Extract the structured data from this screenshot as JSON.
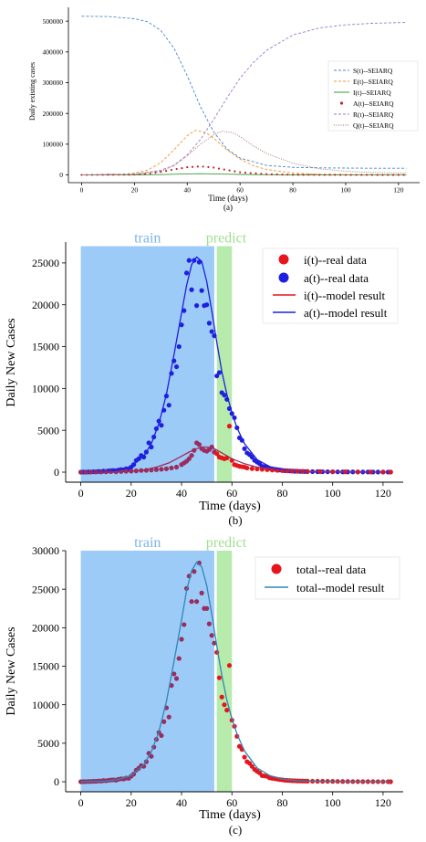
{
  "colors": {
    "train_band": "#9ccbf7",
    "predict_band": "#b6ebab",
    "red": "#e8141c",
    "blue": "#1f1fe0",
    "purple": "#9b2c5e",
    "total_line": "#2f86b8"
  },
  "chart_data": [
    {
      "type": "line",
      "caption": "(a)",
      "xlabel": "Time (days)",
      "ylabel": "Daily existing cases",
      "xlim": [
        -5,
        128
      ],
      "ylim": [
        -25000,
        545000
      ],
      "xticks": [
        "0",
        "20",
        "40",
        "60",
        "80",
        "100",
        "120"
      ],
      "yticks": [
        "0",
        "100000",
        "200000",
        "300000",
        "400000",
        "500000"
      ],
      "legend_position": "right",
      "series": [
        {
          "name": "S(t)--SEIARQ",
          "color": "#4a86c8",
          "style": "dashed",
          "x": [
            0,
            10,
            20,
            25,
            30,
            35,
            40,
            45,
            50,
            55,
            60,
            70,
            80,
            90,
            100,
            110,
            123
          ],
          "y": [
            516000,
            515000,
            508000,
            498000,
            470000,
            412000,
            322000,
            222000,
            140000,
            85000,
            55000,
            31000,
            25000,
            23000,
            22500,
            22000,
            22000
          ]
        },
        {
          "name": "E(t)--SEIARQ",
          "color": "#f0962e",
          "style": "dashed",
          "x": [
            0,
            15,
            20,
            25,
            30,
            35,
            40,
            43,
            47,
            50,
            55,
            60,
            65,
            70,
            80,
            90,
            100,
            123
          ],
          "y": [
            200,
            2000,
            6000,
            16000,
            40000,
            82000,
            128000,
            145000,
            138000,
            120000,
            82000,
            52000,
            30000,
            18000,
            6000,
            2000,
            800,
            200
          ]
        },
        {
          "name": "I(t)--SEIARQ",
          "color": "#3a9a3a",
          "style": "solid",
          "x": [
            0,
            20,
            30,
            35,
            40,
            45,
            50,
            55,
            60,
            70,
            80,
            100,
            123
          ],
          "y": [
            0,
            200,
            1200,
            2400,
            3600,
            4100,
            3500,
            2600,
            1700,
            700,
            250,
            50,
            0
          ]
        },
        {
          "name": "A(t)--SEIARQ",
          "color": "#c0252d",
          "style": "dots",
          "x": [
            0,
            20,
            25,
            30,
            35,
            40,
            45,
            50,
            55,
            60,
            70,
            80,
            100,
            123
          ],
          "y": [
            0,
            1200,
            4000,
            10000,
            18000,
            25000,
            28000,
            24000,
            16000,
            9000,
            2500,
            700,
            100,
            0
          ]
        },
        {
          "name": "R(t)--SEIARQ",
          "color": "#9a79c6",
          "style": "dashed",
          "x": [
            0,
            20,
            30,
            35,
            40,
            45,
            50,
            55,
            60,
            65,
            70,
            80,
            90,
            100,
            110,
            123
          ],
          "y": [
            0,
            3000,
            15000,
            32000,
            65000,
            115000,
            180000,
            250000,
            315000,
            365000,
            405000,
            455000,
            478000,
            488000,
            493000,
            496000
          ]
        },
        {
          "name": "Q(t)--SEIARQ",
          "color": "#a07060",
          "style": "dotted",
          "x": [
            0,
            20,
            30,
            35,
            40,
            45,
            50,
            53,
            57,
            60,
            65,
            70,
            80,
            90,
            100,
            110,
            123
          ],
          "y": [
            0,
            2000,
            12000,
            30000,
            62000,
            100000,
            130000,
            142000,
            138000,
            125000,
            95000,
            70000,
            38000,
            20000,
            12000,
            8000,
            6000
          ]
        }
      ]
    },
    {
      "type": "scatter",
      "caption": "(b)",
      "xlabel": "Time (days)",
      "ylabel": "Daily New Cases",
      "xlim": [
        -6,
        128
      ],
      "ylim": [
        -1200,
        27500
      ],
      "xticks": [
        "0",
        "20",
        "40",
        "60",
        "80",
        "100",
        "120"
      ],
      "yticks": [
        "0",
        "5000",
        "10000",
        "15000",
        "20000",
        "25000"
      ],
      "bands": [
        {
          "label": "train",
          "from": 0,
          "to": 53,
          "ymax": 27000
        },
        {
          "label": "predict",
          "from": 54,
          "to": 60,
          "ymax": 27000
        }
      ],
      "legend_position": "top-right",
      "legend": [
        "i(t)--real data",
        "a(t)--real data",
        "i(t)--model result",
        "a(t)--model result"
      ],
      "a_real": {
        "x": [
          0,
          1,
          2,
          3,
          4,
          5,
          6,
          7,
          8,
          9,
          10,
          11,
          12,
          13,
          14,
          15,
          16,
          17,
          18,
          19,
          20,
          21,
          22,
          23,
          24,
          25,
          26,
          27,
          28,
          29,
          30,
          31,
          32,
          33,
          34,
          35,
          36,
          37,
          38,
          39,
          40,
          41,
          42,
          43,
          44,
          45,
          46,
          47,
          48,
          49,
          50,
          51,
          52,
          53,
          54,
          55,
          56,
          57,
          58,
          59,
          60,
          61,
          62,
          63,
          64,
          65,
          66,
          67,
          68,
          69,
          70,
          71,
          72,
          73,
          74,
          75,
          76,
          77,
          78,
          79,
          80,
          81,
          82,
          83,
          84,
          85,
          86,
          87,
          88,
          89,
          90,
          92,
          94,
          96,
          98,
          100,
          102,
          104,
          106,
          108,
          110,
          112,
          114,
          116,
          118,
          120,
          122,
          123
        ],
        "y": [
          0,
          10,
          0,
          30,
          20,
          50,
          40,
          80,
          70,
          120,
          100,
          150,
          180,
          200,
          160,
          250,
          300,
          280,
          400,
          350,
          600,
          900,
          1400,
          1600,
          2000,
          1800,
          2400,
          3500,
          3000,
          4200,
          5200,
          6100,
          5600,
          7400,
          9100,
          8000,
          11800,
          13300,
          12600,
          15000,
          17600,
          19300,
          23800,
          25300,
          21800,
          25300,
          19900,
          25100,
          21700,
          19900,
          20000,
          17800,
          16800,
          16300,
          11500,
          11900,
          9500,
          9200,
          8700,
          7600,
          7000,
          6500,
          5300,
          4100,
          3800,
          2800,
          2300,
          2100,
          1800,
          1400,
          1200,
          1000,
          700,
          650,
          600,
          450,
          400,
          350,
          300,
          260,
          220,
          180,
          160,
          140,
          120,
          110,
          100,
          90,
          80,
          75,
          70,
          60,
          55,
          50,
          45,
          40,
          35,
          30,
          28,
          25,
          22,
          20,
          18,
          15,
          12,
          10,
          8,
          5
        ]
      },
      "i_real": {
        "x": [
          0,
          2,
          4,
          6,
          8,
          10,
          12,
          14,
          16,
          18,
          20,
          22,
          24,
          26,
          28,
          30,
          32,
          34,
          36,
          38,
          40,
          41,
          42,
          43,
          44,
          45,
          46,
          47,
          48,
          49,
          50,
          51,
          52,
          53,
          54,
          55,
          56,
          57,
          58,
          59,
          60,
          61,
          62,
          63,
          64,
          65,
          66,
          68,
          70,
          72,
          74,
          76,
          78,
          80,
          82,
          84,
          86,
          88,
          90,
          95,
          100,
          105,
          110,
          115,
          120,
          123
        ],
        "y": [
          0,
          0,
          10,
          20,
          30,
          40,
          60,
          40,
          80,
          100,
          120,
          150,
          200,
          220,
          250,
          300,
          350,
          400,
          500,
          600,
          900,
          1100,
          1300,
          1600,
          2000,
          2600,
          3500,
          3300,
          2800,
          2600,
          2500,
          2700,
          3000,
          2400,
          2200,
          1800,
          1700,
          1600,
          1700,
          5500,
          1400,
          900,
          800,
          700,
          650,
          600,
          500,
          420,
          380,
          340,
          300,
          260,
          220,
          190,
          160,
          140,
          120,
          100,
          90,
          70,
          50,
          40,
          30,
          20,
          15,
          10
        ]
      },
      "i_model": {
        "x": [
          0,
          10,
          20,
          25,
          30,
          35,
          40,
          43,
          46,
          48,
          50,
          53,
          56,
          60,
          65,
          70,
          80,
          90,
          100,
          110,
          123
        ],
        "y": [
          0,
          10,
          100,
          250,
          600,
          1100,
          1900,
          2400,
          2800,
          3000,
          3000,
          2800,
          2300,
          1600,
          1000,
          600,
          220,
          80,
          30,
          10,
          0
        ]
      },
      "a_model": {
        "x": [
          0,
          10,
          15,
          20,
          25,
          28,
          31,
          34,
          37,
          40,
          42,
          44,
          46,
          48,
          50,
          52,
          54,
          56,
          58,
          60,
          62,
          65,
          70,
          75,
          80,
          85,
          90,
          100,
          110,
          123
        ],
        "y": [
          0,
          80,
          250,
          700,
          1900,
          3400,
          5800,
          9300,
          14000,
          19000,
          22300,
          24800,
          25700,
          25200,
          22800,
          19300,
          15500,
          12000,
          9300,
          7100,
          5300,
          3400,
          1500,
          650,
          280,
          130,
          60,
          15,
          5,
          0
        ]
      }
    },
    {
      "type": "scatter",
      "caption": "(c)",
      "xlabel": "Time (days)",
      "ylabel": "Daily New Cases",
      "xlim": [
        -6,
        128
      ],
      "ylim": [
        -1300,
        30000
      ],
      "xticks": [
        "0",
        "20",
        "40",
        "60",
        "80",
        "100",
        "120"
      ],
      "yticks": [
        "0",
        "5000",
        "10000",
        "15000",
        "20000",
        "25000",
        "30000"
      ],
      "bands": [
        {
          "label": "train",
          "from": 0,
          "to": 53,
          "ymax": 30000
        },
        {
          "label": "predict",
          "from": 54,
          "to": 60,
          "ymax": 30000
        }
      ],
      "legend_position": "top-right",
      "legend": [
        "total--real data",
        "total--model result"
      ],
      "total_real": {
        "x": [
          0,
          1,
          2,
          3,
          4,
          5,
          6,
          7,
          8,
          9,
          10,
          11,
          12,
          13,
          14,
          15,
          16,
          17,
          18,
          19,
          20,
          21,
          22,
          23,
          24,
          25,
          26,
          27,
          28,
          29,
          30,
          31,
          32,
          33,
          34,
          35,
          36,
          37,
          38,
          39,
          40,
          41,
          42,
          43,
          44,
          45,
          46,
          47,
          48,
          49,
          50,
          51,
          52,
          53,
          54,
          55,
          56,
          57,
          58,
          59,
          60,
          61,
          62,
          63,
          64,
          65,
          66,
          67,
          68,
          69,
          70,
          71,
          72,
          73,
          74,
          75,
          76,
          77,
          78,
          79,
          80,
          81,
          82,
          83,
          84,
          85,
          86,
          87,
          88,
          89,
          90,
          92,
          94,
          96,
          98,
          100,
          102,
          104,
          106,
          108,
          110,
          112,
          114,
          116,
          118,
          120,
          122,
          123
        ],
        "y": [
          0,
          20,
          10,
          40,
          30,
          60,
          60,
          100,
          90,
          150,
          130,
          190,
          230,
          250,
          210,
          320,
          380,
          360,
          480,
          450,
          720,
          1000,
          1500,
          1750,
          2100,
          2000,
          2600,
          3700,
          3300,
          4500,
          5500,
          6400,
          6000,
          7800,
          9600,
          8400,
          12500,
          14000,
          13400,
          16000,
          18500,
          20400,
          25100,
          26700,
          23400,
          27300,
          23400,
          28400,
          24500,
          22500,
          22500,
          20500,
          19000,
          18000,
          16800,
          13500,
          11000,
          10000,
          9300,
          15100,
          8000,
          7200,
          5900,
          4600,
          4200,
          3200,
          2600,
          2400,
          2000,
          1600,
          1350,
          1150,
          800,
          750,
          700,
          500,
          450,
          400,
          340,
          290,
          250,
          200,
          180,
          160,
          140,
          130,
          110,
          100,
          90,
          85,
          80,
          70,
          65,
          60,
          55,
          50,
          40,
          35,
          30,
          28,
          25,
          22,
          18,
          15,
          12,
          10,
          8,
          5
        ]
      },
      "total_model": {
        "x": [
          0,
          10,
          15,
          20,
          25,
          28,
          31,
          34,
          37,
          40,
          42,
          44,
          46,
          48,
          50,
          52,
          54,
          56,
          58,
          60,
          62,
          65,
          70,
          75,
          80,
          85,
          90,
          100,
          110,
          123
        ],
        "y": [
          0,
          90,
          300,
          800,
          2200,
          3900,
          6500,
          10400,
          15600,
          21000,
          24800,
          27400,
          28500,
          27900,
          25500,
          21800,
          17600,
          13800,
          10600,
          8200,
          6200,
          4000,
          1800,
          800,
          350,
          160,
          70,
          20,
          5,
          0
        ]
      }
    }
  ]
}
